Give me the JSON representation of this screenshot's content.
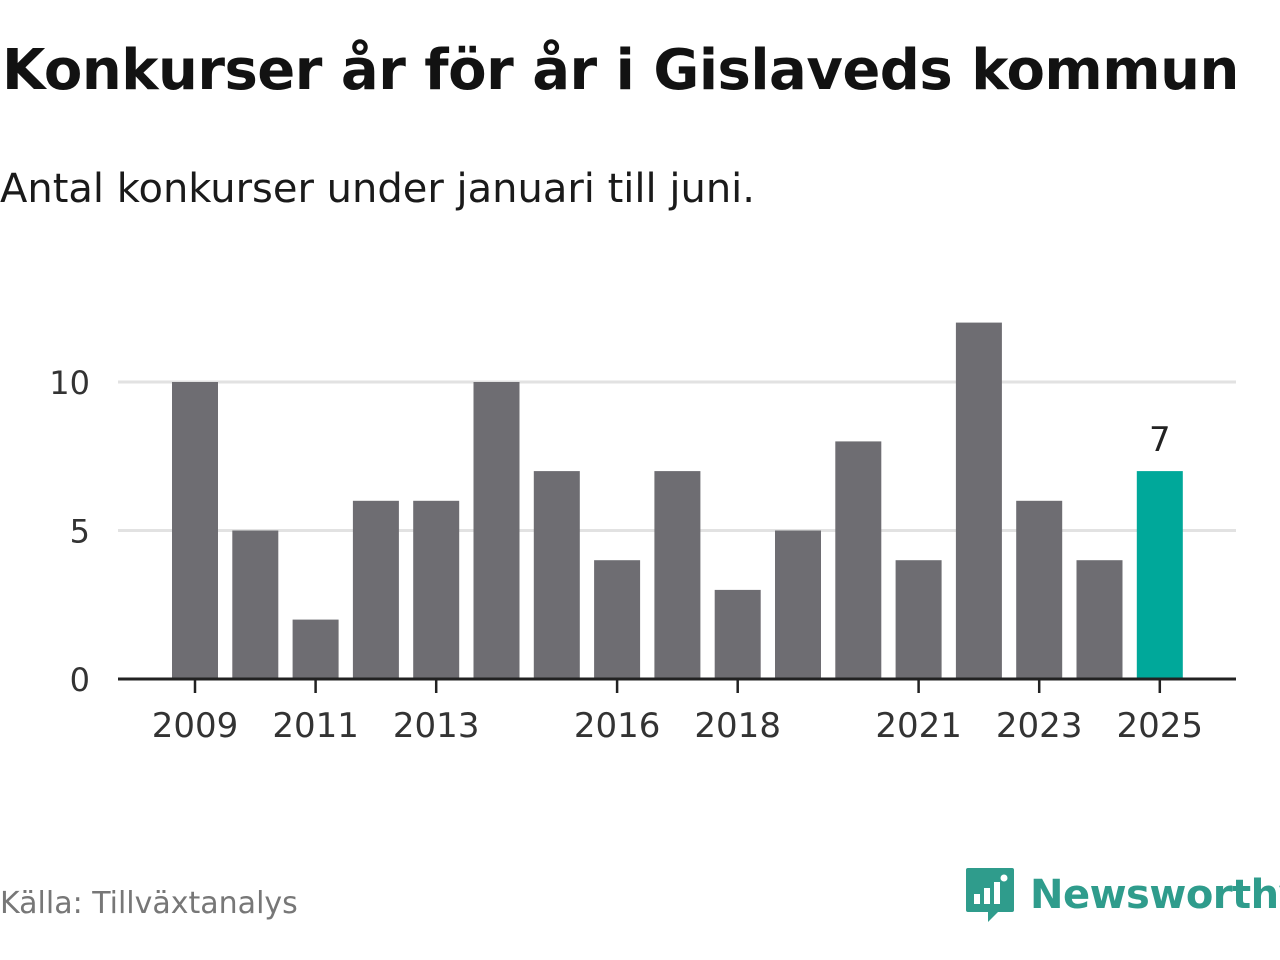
{
  "title": "Konkurser år för år i Gislaveds kommun",
  "subtitle": "Antal konkurser under januari till juni.",
  "source": "Källa: Tillväxtanalys",
  "brand": {
    "name": "Newsworthy",
    "icon": "newsworthy-logo-icon"
  },
  "colors": {
    "bar": "#6e6d72",
    "highlight": "#00a89a",
    "grid": "#e2e2e2",
    "axis": "#222222",
    "brand": "#2f9c8c"
  },
  "chart_data": {
    "type": "bar",
    "title": "Konkurser år för år i Gislaveds kommun",
    "subtitle": "Antal konkurser under januari till juni.",
    "xlabel": "",
    "ylabel": "",
    "categories": [
      "2009",
      "2010",
      "2011",
      "2012",
      "2013",
      "2014",
      "2015",
      "2016",
      "2017",
      "2018",
      "2019",
      "2020",
      "2021",
      "2022",
      "2023",
      "2024",
      "2025"
    ],
    "values": [
      10,
      5,
      2,
      6,
      6,
      10,
      7,
      4,
      7,
      3,
      5,
      8,
      4,
      12,
      6,
      4,
      7
    ],
    "x_tick_labels": [
      "2009",
      "2011",
      "2013",
      "2016",
      "2018",
      "2021",
      "2023",
      "2025"
    ],
    "y_ticks": [
      0,
      5,
      10
    ],
    "ylim": [
      0,
      12
    ],
    "grid": true,
    "highlight": {
      "category": "2025",
      "label": "7"
    }
  }
}
